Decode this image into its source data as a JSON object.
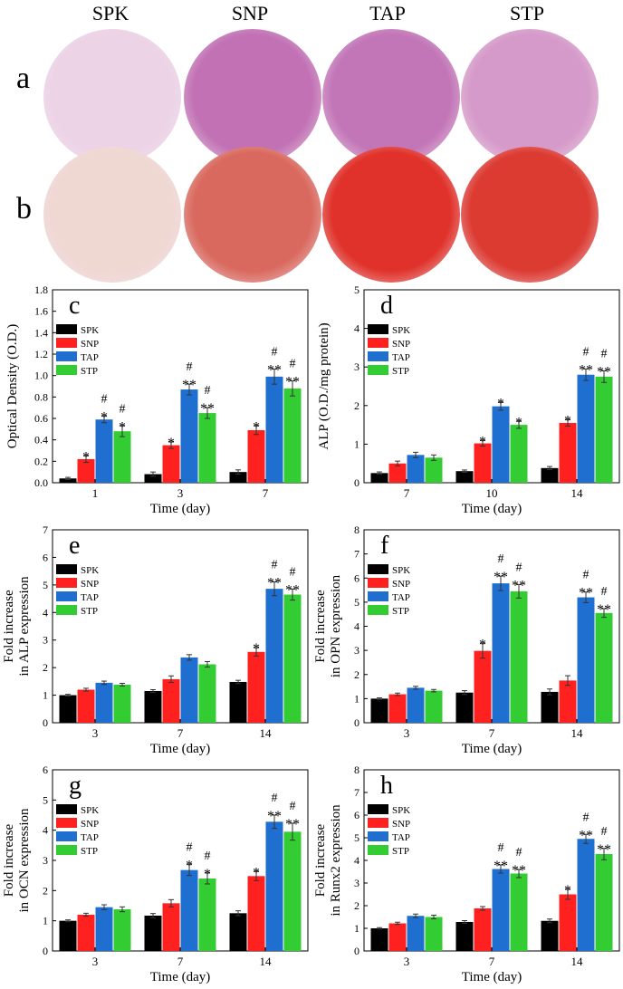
{
  "columns": [
    "SPK",
    "SNP",
    "TAP",
    "STP"
  ],
  "rows": [
    {
      "label": "a",
      "tints": [
        "#ecd3e6",
        "#c171b4",
        "#c275b7",
        "#d59ac9"
      ]
    },
    {
      "label": "b",
      "tints": [
        "#efd7d2",
        "#d9695e",
        "#e0322a",
        "#dc3b32"
      ]
    }
  ],
  "colors": {
    "SPK": "#000000",
    "SNP": "#ff2020",
    "TAP": "#1f6fd0",
    "STP": "#33cc33"
  },
  "chart_data": [
    {
      "id": "c",
      "type": "bar",
      "panel_letter": "c",
      "categories": [
        "1",
        "3",
        "7"
      ],
      "ylabel": "Optical Density (O.D.)",
      "xlabel": "Time (day)",
      "ylim": [
        0.0,
        1.8
      ],
      "yticks": [
        "0.0",
        "0.2",
        "0.4",
        "0.6",
        "0.8",
        "1.0",
        "1.2",
        "1.4",
        "1.6",
        "1.8"
      ],
      "legend": "top-left",
      "series": [
        {
          "name": "SPK",
          "values": [
            0.04,
            0.08,
            0.1
          ],
          "err": [
            0.01,
            0.02,
            0.02
          ],
          "marks": [
            "",
            "",
            ""
          ]
        },
        {
          "name": "SNP",
          "values": [
            0.22,
            0.35,
            0.49
          ],
          "err": [
            0.03,
            0.03,
            0.04
          ],
          "marks": [
            "*",
            "*",
            "*"
          ]
        },
        {
          "name": "TAP",
          "values": [
            0.59,
            0.87,
            0.99
          ],
          "err": [
            0.03,
            0.05,
            0.07
          ],
          "marks": [
            "#|*",
            "#|**",
            "#|**"
          ]
        },
        {
          "name": "STP",
          "values": [
            0.48,
            0.65,
            0.88
          ],
          "err": [
            0.05,
            0.05,
            0.07
          ],
          "marks": [
            "#|*",
            "#|**",
            "#|**"
          ]
        }
      ]
    },
    {
      "id": "d",
      "type": "bar",
      "panel_letter": "d",
      "categories": [
        "7",
        "10",
        "14"
      ],
      "ylabel": "ALP (O.D./mg protein)",
      "xlabel": "Time (day)",
      "ylim": [
        0,
        5
      ],
      "yticks": [
        "0",
        "1",
        "2",
        "3",
        "4",
        "5"
      ],
      "legend": "top-left",
      "series": [
        {
          "name": "SPK",
          "values": [
            0.25,
            0.3,
            0.38
          ],
          "err": [
            0.03,
            0.03,
            0.04
          ],
          "marks": [
            "",
            "",
            ""
          ]
        },
        {
          "name": "SNP",
          "values": [
            0.5,
            1.02,
            1.55
          ],
          "err": [
            0.06,
            0.07,
            0.08
          ],
          "marks": [
            "",
            "*",
            "*"
          ]
        },
        {
          "name": "TAP",
          "values": [
            0.72,
            1.98,
            2.8
          ],
          "err": [
            0.07,
            0.1,
            0.15
          ],
          "marks": [
            "",
            "*",
            "#|**"
          ]
        },
        {
          "name": "STP",
          "values": [
            0.65,
            1.5,
            2.75
          ],
          "err": [
            0.07,
            0.09,
            0.15
          ],
          "marks": [
            "",
            "*",
            "#|**"
          ]
        }
      ]
    },
    {
      "id": "e",
      "type": "bar",
      "panel_letter": "e",
      "categories": [
        "3",
        "7",
        "14"
      ],
      "ylabel": [
        "Fold increase",
        "in ALP expression"
      ],
      "xlabel": "Time (day)",
      "ylim": [
        0,
        7
      ],
      "yticks": [
        "0",
        "1",
        "2",
        "3",
        "4",
        "5",
        "6",
        "7"
      ],
      "legend": "top-left",
      "series": [
        {
          "name": "SPK",
          "values": [
            1.0,
            1.15,
            1.48
          ],
          "err": [
            0.03,
            0.05,
            0.06
          ],
          "marks": [
            "",
            "",
            ""
          ]
        },
        {
          "name": "SNP",
          "values": [
            1.2,
            1.58,
            2.57
          ],
          "err": [
            0.05,
            0.12,
            0.15
          ],
          "marks": [
            "",
            "",
            "*"
          ]
        },
        {
          "name": "TAP",
          "values": [
            1.45,
            2.37,
            4.86
          ],
          "err": [
            0.06,
            0.1,
            0.25
          ],
          "marks": [
            "",
            "",
            "#|**"
          ]
        },
        {
          "name": "STP",
          "values": [
            1.38,
            2.12,
            4.65
          ],
          "err": [
            0.05,
            0.1,
            0.2
          ],
          "marks": [
            "",
            "",
            "#|**"
          ]
        }
      ]
    },
    {
      "id": "f",
      "type": "bar",
      "panel_letter": "f",
      "categories": [
        "3",
        "7",
        "14"
      ],
      "ylabel": [
        "Fold increase",
        "in OPN expression"
      ],
      "xlabel": "Time (day)",
      "ylim": [
        0,
        8
      ],
      "yticks": [
        "0",
        "1",
        "2",
        "3",
        "4",
        "5",
        "6",
        "7",
        "8"
      ],
      "legend": "top-left",
      "series": [
        {
          "name": "SPK",
          "values": [
            1.0,
            1.25,
            1.28
          ],
          "err": [
            0.03,
            0.08,
            0.12
          ],
          "marks": [
            "",
            "",
            ""
          ]
        },
        {
          "name": "SNP",
          "values": [
            1.18,
            2.98,
            1.75
          ],
          "err": [
            0.05,
            0.3,
            0.2
          ],
          "marks": [
            "",
            "*",
            ""
          ]
        },
        {
          "name": "TAP",
          "values": [
            1.45,
            5.78,
            5.2
          ],
          "err": [
            0.06,
            0.3,
            0.22
          ],
          "marks": [
            "",
            "#|**",
            "#|**"
          ]
        },
        {
          "name": "STP",
          "values": [
            1.33,
            5.45,
            4.55
          ],
          "err": [
            0.05,
            0.28,
            0.18
          ],
          "marks": [
            "",
            "#|**",
            "#|**"
          ]
        }
      ]
    },
    {
      "id": "g",
      "type": "bar",
      "panel_letter": "g",
      "categories": [
        "3",
        "7",
        "14"
      ],
      "ylabel": [
        "Fold increase",
        "in OCN expression"
      ],
      "xlabel": "Time (day)",
      "ylim": [
        0,
        6
      ],
      "yticks": [
        "0",
        "1",
        "2",
        "3",
        "4",
        "5",
        "6"
      ],
      "legend": "top-left",
      "series": [
        {
          "name": "SPK",
          "values": [
            1.0,
            1.17,
            1.25
          ],
          "err": [
            0.03,
            0.07,
            0.08
          ],
          "marks": [
            "",
            "",
            ""
          ]
        },
        {
          "name": "SNP",
          "values": [
            1.2,
            1.58,
            2.48
          ],
          "err": [
            0.05,
            0.12,
            0.15
          ],
          "marks": [
            "",
            "",
            "*"
          ]
        },
        {
          "name": "TAP",
          "values": [
            1.45,
            2.68,
            4.28
          ],
          "err": [
            0.08,
            0.18,
            0.22
          ],
          "marks": [
            "",
            "#|*",
            "#|**"
          ]
        },
        {
          "name": "STP",
          "values": [
            1.38,
            2.4,
            3.95
          ],
          "err": [
            0.08,
            0.18,
            0.28
          ],
          "marks": [
            "",
            "#|*",
            "#|**"
          ]
        }
      ]
    },
    {
      "id": "h",
      "type": "bar",
      "panel_letter": "h",
      "categories": [
        "3",
        "7",
        "14"
      ],
      "ylabel": [
        "Fold increase",
        "in Runx2 expression"
      ],
      "xlabel": "Time (day)",
      "ylim": [
        0,
        8
      ],
      "yticks": [
        "0",
        "1",
        "2",
        "3",
        "4",
        "5",
        "6",
        "7",
        "8"
      ],
      "legend": "top-left",
      "series": [
        {
          "name": "SPK",
          "values": [
            1.0,
            1.28,
            1.33
          ],
          "err": [
            0.03,
            0.06,
            0.08
          ],
          "marks": [
            "",
            "",
            ""
          ]
        },
        {
          "name": "SNP",
          "values": [
            1.22,
            1.88,
            2.5
          ],
          "err": [
            0.05,
            0.08,
            0.22
          ],
          "marks": [
            "",
            "",
            "*"
          ]
        },
        {
          "name": "TAP",
          "values": [
            1.55,
            3.62,
            4.95
          ],
          "err": [
            0.08,
            0.18,
            0.2
          ],
          "marks": [
            "",
            "#|**",
            "#|**"
          ]
        },
        {
          "name": "STP",
          "values": [
            1.5,
            3.42,
            4.28
          ],
          "err": [
            0.08,
            0.18,
            0.25
          ],
          "marks": [
            "",
            "#|**",
            "#|**"
          ]
        }
      ]
    }
  ]
}
